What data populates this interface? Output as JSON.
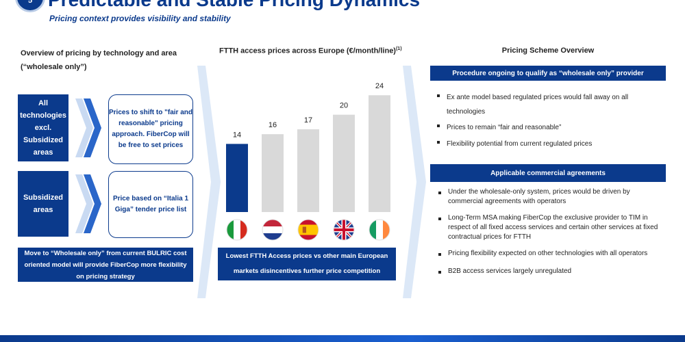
{
  "header": {
    "badge": "5",
    "title": "Predictable and Stable Pricing Dynamics",
    "subtitle": "Pricing context provides visibility and stability"
  },
  "left": {
    "heading": "Overview of pricing by technology and area (“wholesale only”)",
    "rows": [
      {
        "area": "All technologies excl. Subsidized areas",
        "note": "Prices to shift to \"fair and reasonable\" pricing approach. FiberCop will be free to set prices"
      },
      {
        "area": "Subsidized areas",
        "note": "Price based on “Italia 1 Giga” tender price list"
      }
    ],
    "footer": "Move to “Wholesale only” from current BULRIC cost oriented model will provide FiberCop more flexibility on pricing strategy"
  },
  "middle": {
    "heading": "FTTH access prices across Europe (€/month/line)",
    "heading_sup": "(1)",
    "footer": "Lowest FTTH Access prices vs other main European markets disincentives further price competition"
  },
  "chart_data": {
    "type": "bar",
    "categories": [
      "Italy",
      "Netherlands",
      "Spain",
      "United Kingdom",
      "Ireland"
    ],
    "values": [
      14,
      16,
      17,
      20,
      24
    ],
    "ylim": [
      0,
      26
    ],
    "grid": false,
    "legend": "none",
    "colors": {
      "highlight": "#0b3a8c",
      "other": "#d9d9d9"
    },
    "data_labels": [
      "14",
      "16",
      "17",
      "20",
      "24"
    ]
  },
  "right": {
    "heading": "Pricing Scheme Overview",
    "section1": {
      "title": "Procedure ongoing to qualify as “wholesale only” provider",
      "bullets": [
        "Ex ante model based regulated prices would fall away on all technologies",
        "Prices to remain “fair and reasonable”",
        "Flexibility potential from current regulated prices"
      ]
    },
    "section2": {
      "title": "Applicable commercial agreements",
      "bullets": [
        "Under the wholesale-only system, prices would be driven by commercial agreements with operators",
        "Long-Term MSA making FiberCop the exclusive provider to TIM in respect of all fixed access services and certain other services at fixed contractual prices for FTTH",
        "Pricing flexibility expected on other technologies with all operators",
        "B2B access services largely unregulated"
      ]
    }
  },
  "colors": {
    "brand": "#0b3a8c",
    "arrow": "#c9daf2",
    "bar_grey": "#d9d9d9"
  }
}
